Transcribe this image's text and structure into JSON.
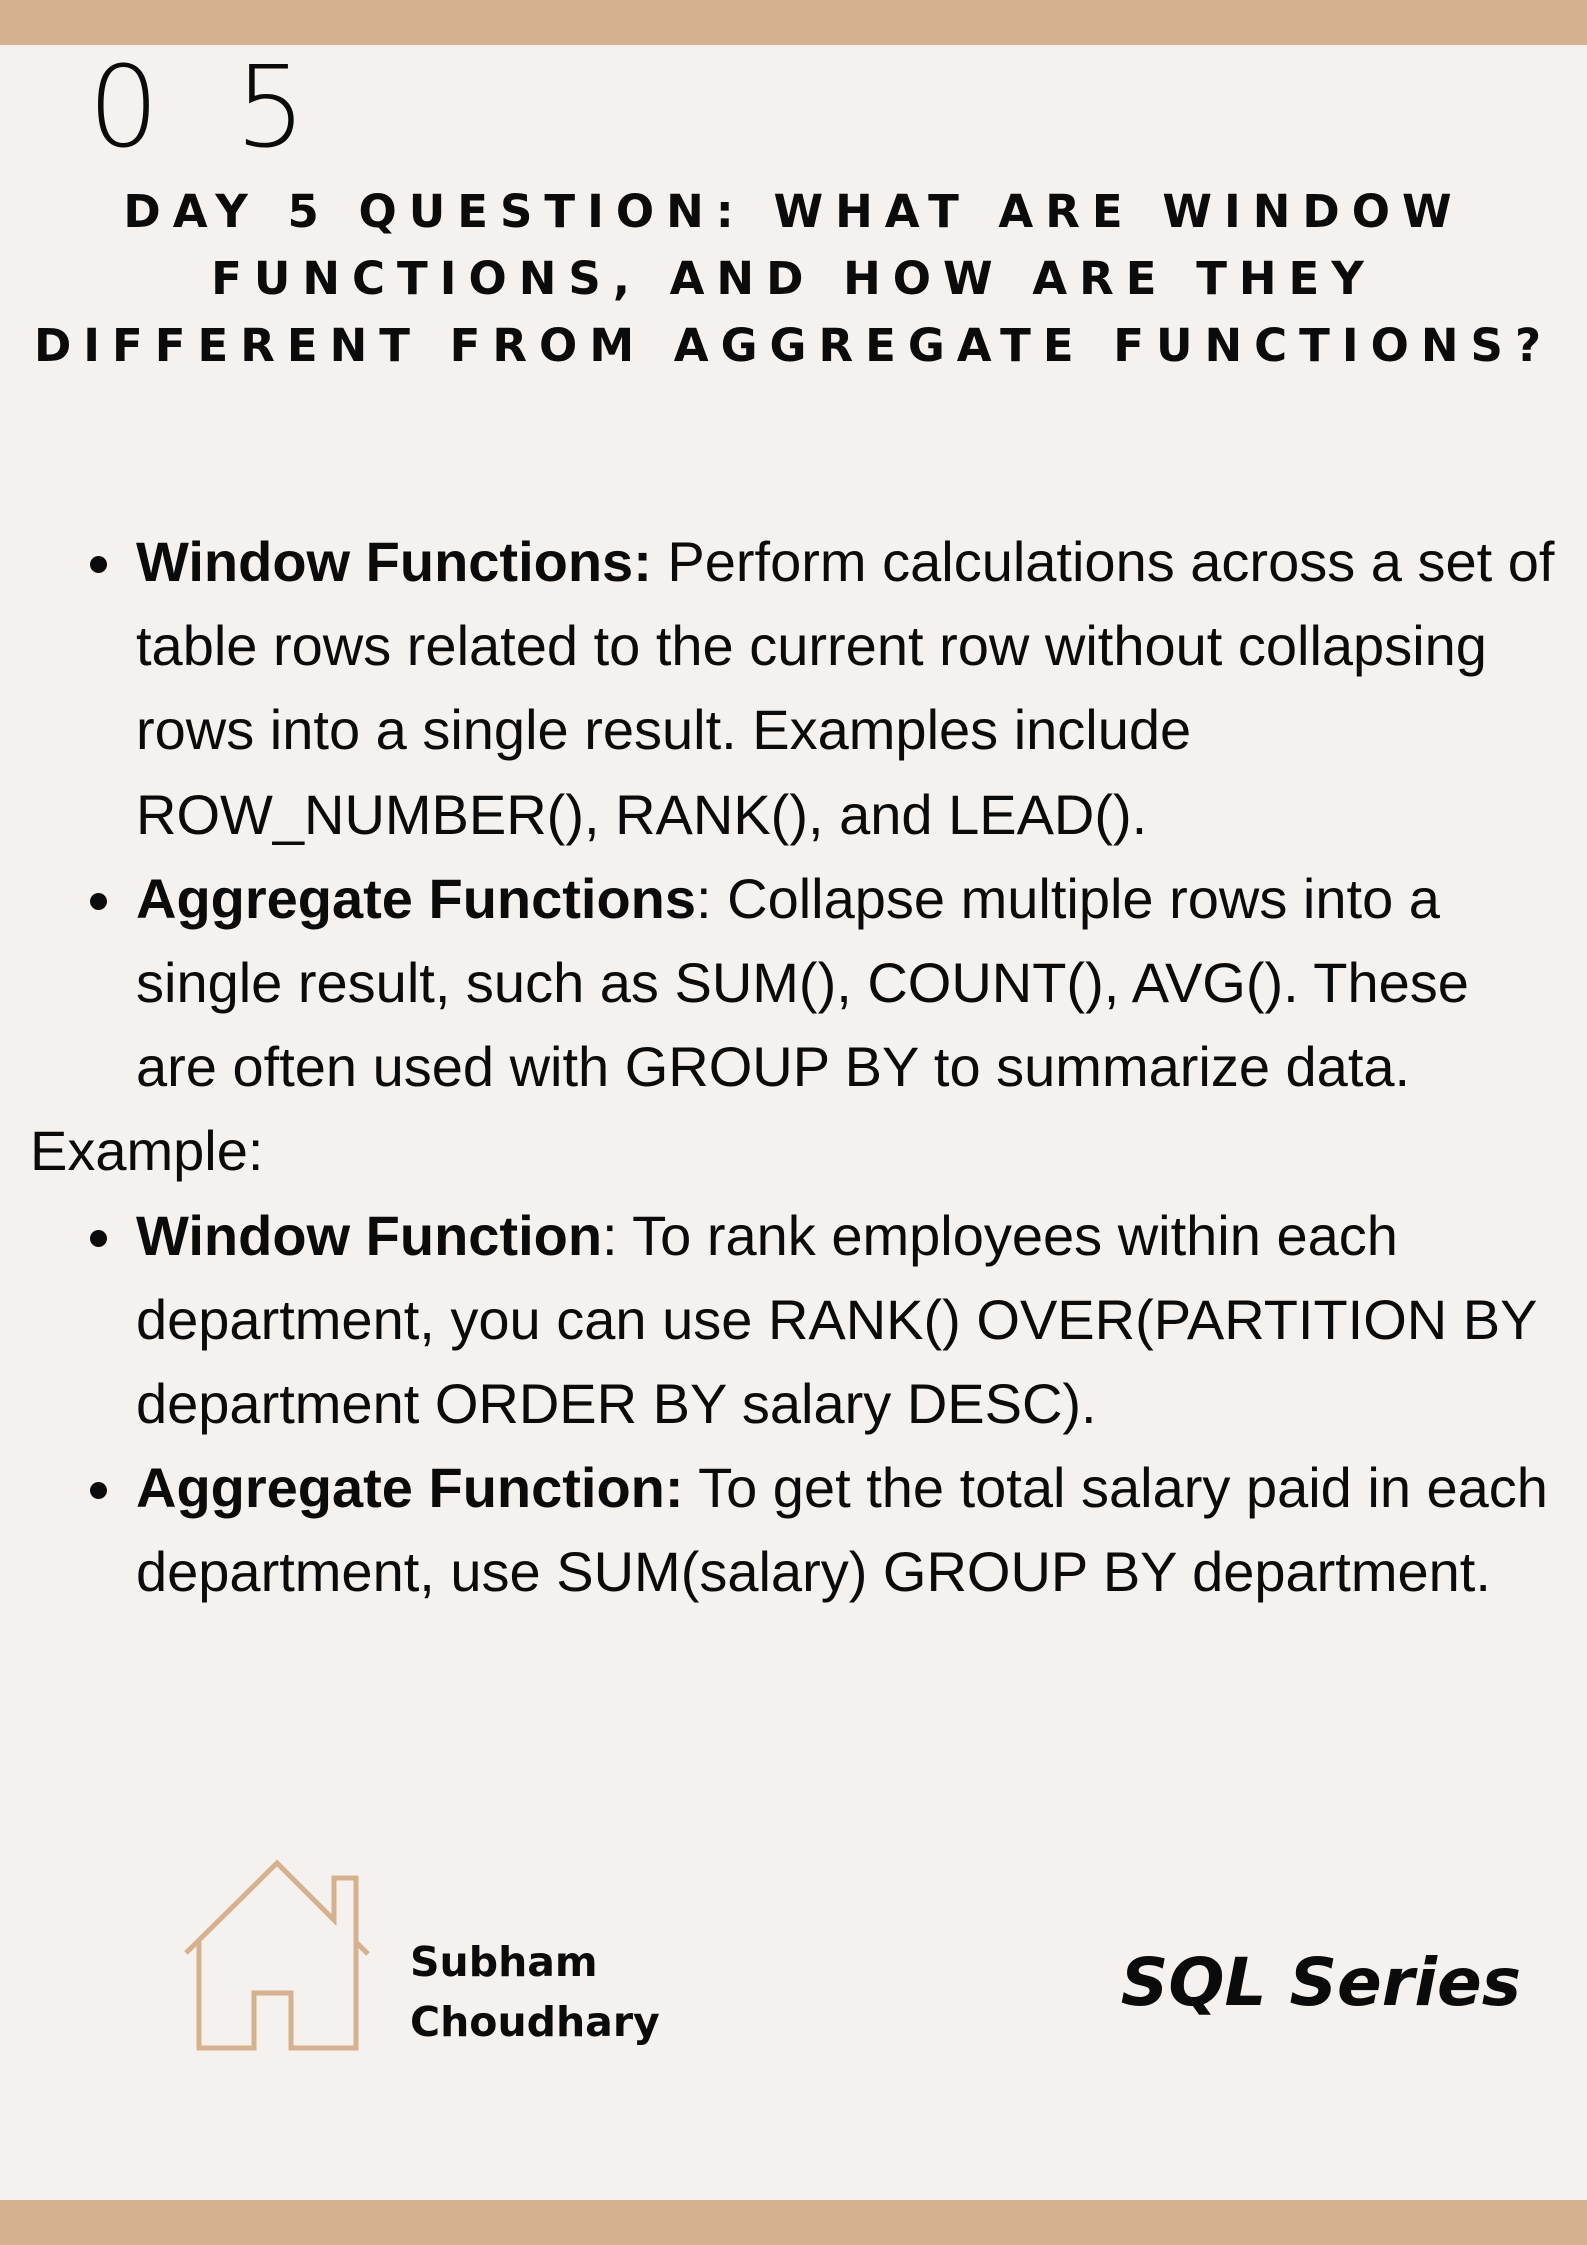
{
  "header": {
    "day_number": "0 5",
    "question": "DAY 5 QUESTION: WHAT ARE WINDOW\nFUNCTIONS, AND HOW ARE THEY\nDIFFERENT FROM AGGREGATE FUNCTIONS?"
  },
  "definitions": [
    {
      "term": "Window Functions:",
      "text": " Perform calculations across a set of table rows related to the current row without collapsing rows into a single result. Examples include ROW_NUMBER(), RANK(), and LEAD()."
    },
    {
      "term": "Aggregate Functions",
      "text": ": Collapse multiple rows into a single result, such as SUM(), COUNT(), AVG(). These are often used with GROUP BY to summarize data."
    }
  ],
  "example_label": "Example:",
  "examples": [
    {
      "term": "Window Function",
      "text": ": To rank employees within each department, you can use RANK() OVER(PARTITION BY department ORDER BY salary DESC)."
    },
    {
      "term": "Aggregate Function:",
      "text": " To get the total salary paid in each department, use SUM(salary) GROUP BY department."
    }
  ],
  "footer": {
    "author": "Subham\nChoudhary",
    "series": "SQL Series",
    "icon": "house-icon"
  },
  "colors": {
    "background": "#f5f1ef",
    "band": "#d5b18e",
    "house_stroke": "#d5b18e",
    "text": "#0b0b0b"
  }
}
